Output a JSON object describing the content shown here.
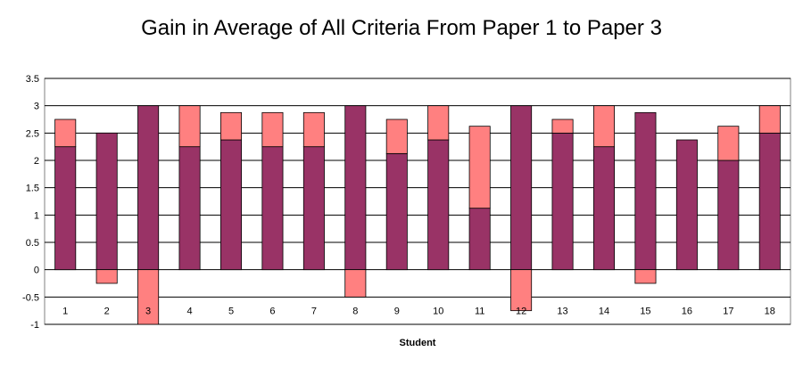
{
  "chart_data": {
    "type": "bar",
    "stacked": true,
    "title": "Gain in Average of All Criteria From Paper 1 to Paper 3",
    "xlabel": "Student",
    "ylabel": "",
    "ylim": [
      -1,
      3.5
    ],
    "yticks": [
      -1,
      -0.5,
      0,
      0.5,
      1,
      1.5,
      2,
      2.5,
      3,
      3.5
    ],
    "grid": true,
    "legend": "none",
    "categories": [
      "1",
      "2",
      "3",
      "4",
      "5",
      "6",
      "7",
      "8",
      "9",
      "10",
      "11",
      "12",
      "13",
      "14",
      "15",
      "16",
      "17",
      "18"
    ],
    "series": [
      {
        "color": "#993366",
        "values": [
          2.25,
          2.5,
          3,
          2.25,
          2.375,
          2.25,
          2.25,
          3,
          2.125,
          2.375,
          1.125,
          3,
          2.5,
          2.25,
          2.875,
          2.375,
          2,
          2.5
        ]
      },
      {
        "color": "#ff8080",
        "values": [
          0.5,
          -0.25,
          -1,
          0.75,
          0.5,
          0.625,
          0.625,
          -0.5,
          0.625,
          0.625,
          1.5,
          -0.75,
          0.25,
          0.75,
          -0.25,
          0,
          0.625,
          0.5
        ]
      }
    ]
  }
}
